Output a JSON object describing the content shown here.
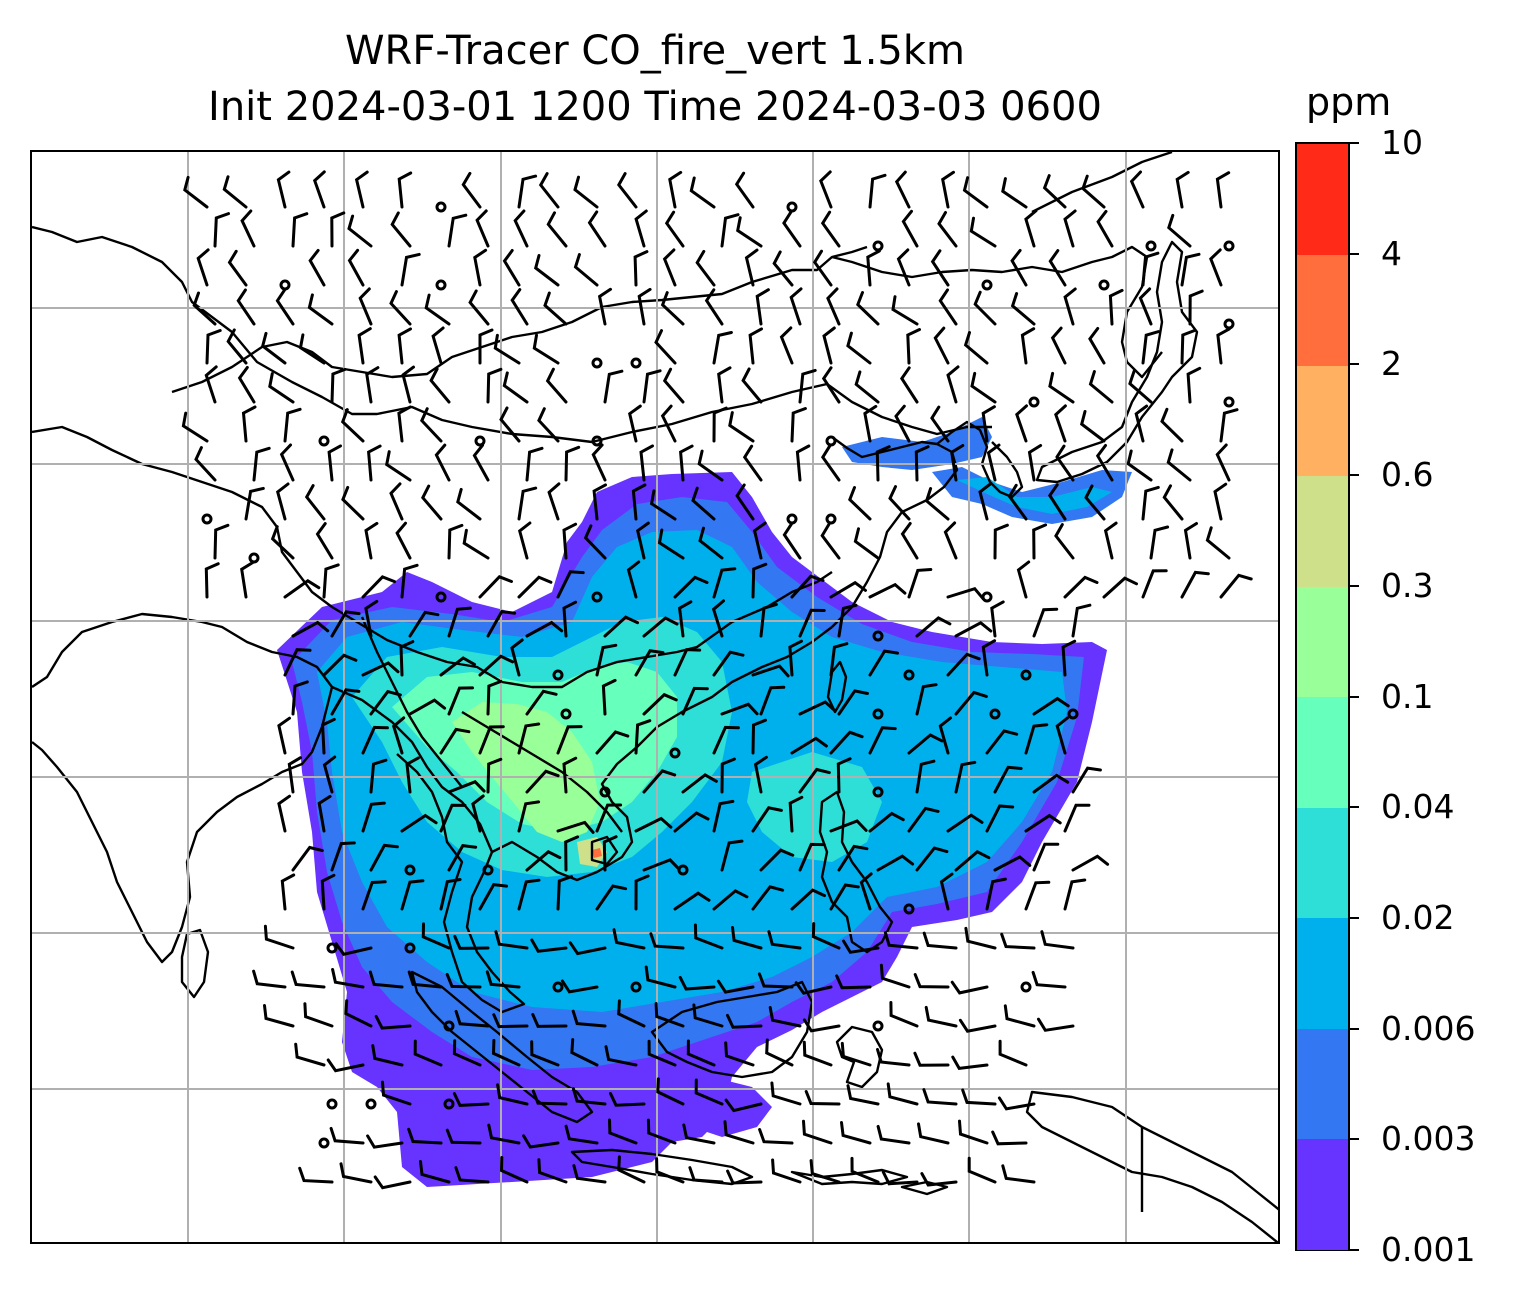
{
  "title": {
    "line1": "WRF-Tracer CO_fire_vert 1.5km",
    "line2": "Init 2024-03-01 1200 Time 2024-03-03 0600"
  },
  "colorbar": {
    "units": "ppm",
    "levels": [
      "0.001",
      "0.003",
      "0.006",
      "0.02",
      "0.04",
      "0.1",
      "0.3",
      "0.6",
      "2",
      "4",
      "10"
    ],
    "colors": [
      "#6633ff",
      "#3377f2",
      "#00b0ec",
      "#2edfd8",
      "#66ffbb",
      "#99ff99",
      "#cfe08a",
      "#ffb060",
      "#ff6e3c",
      "#ff2a18"
    ]
  },
  "map": {
    "coastline_color": "#000000",
    "gridline_color": "#b0b0b0",
    "wind_barb_color": "#000000"
  }
}
